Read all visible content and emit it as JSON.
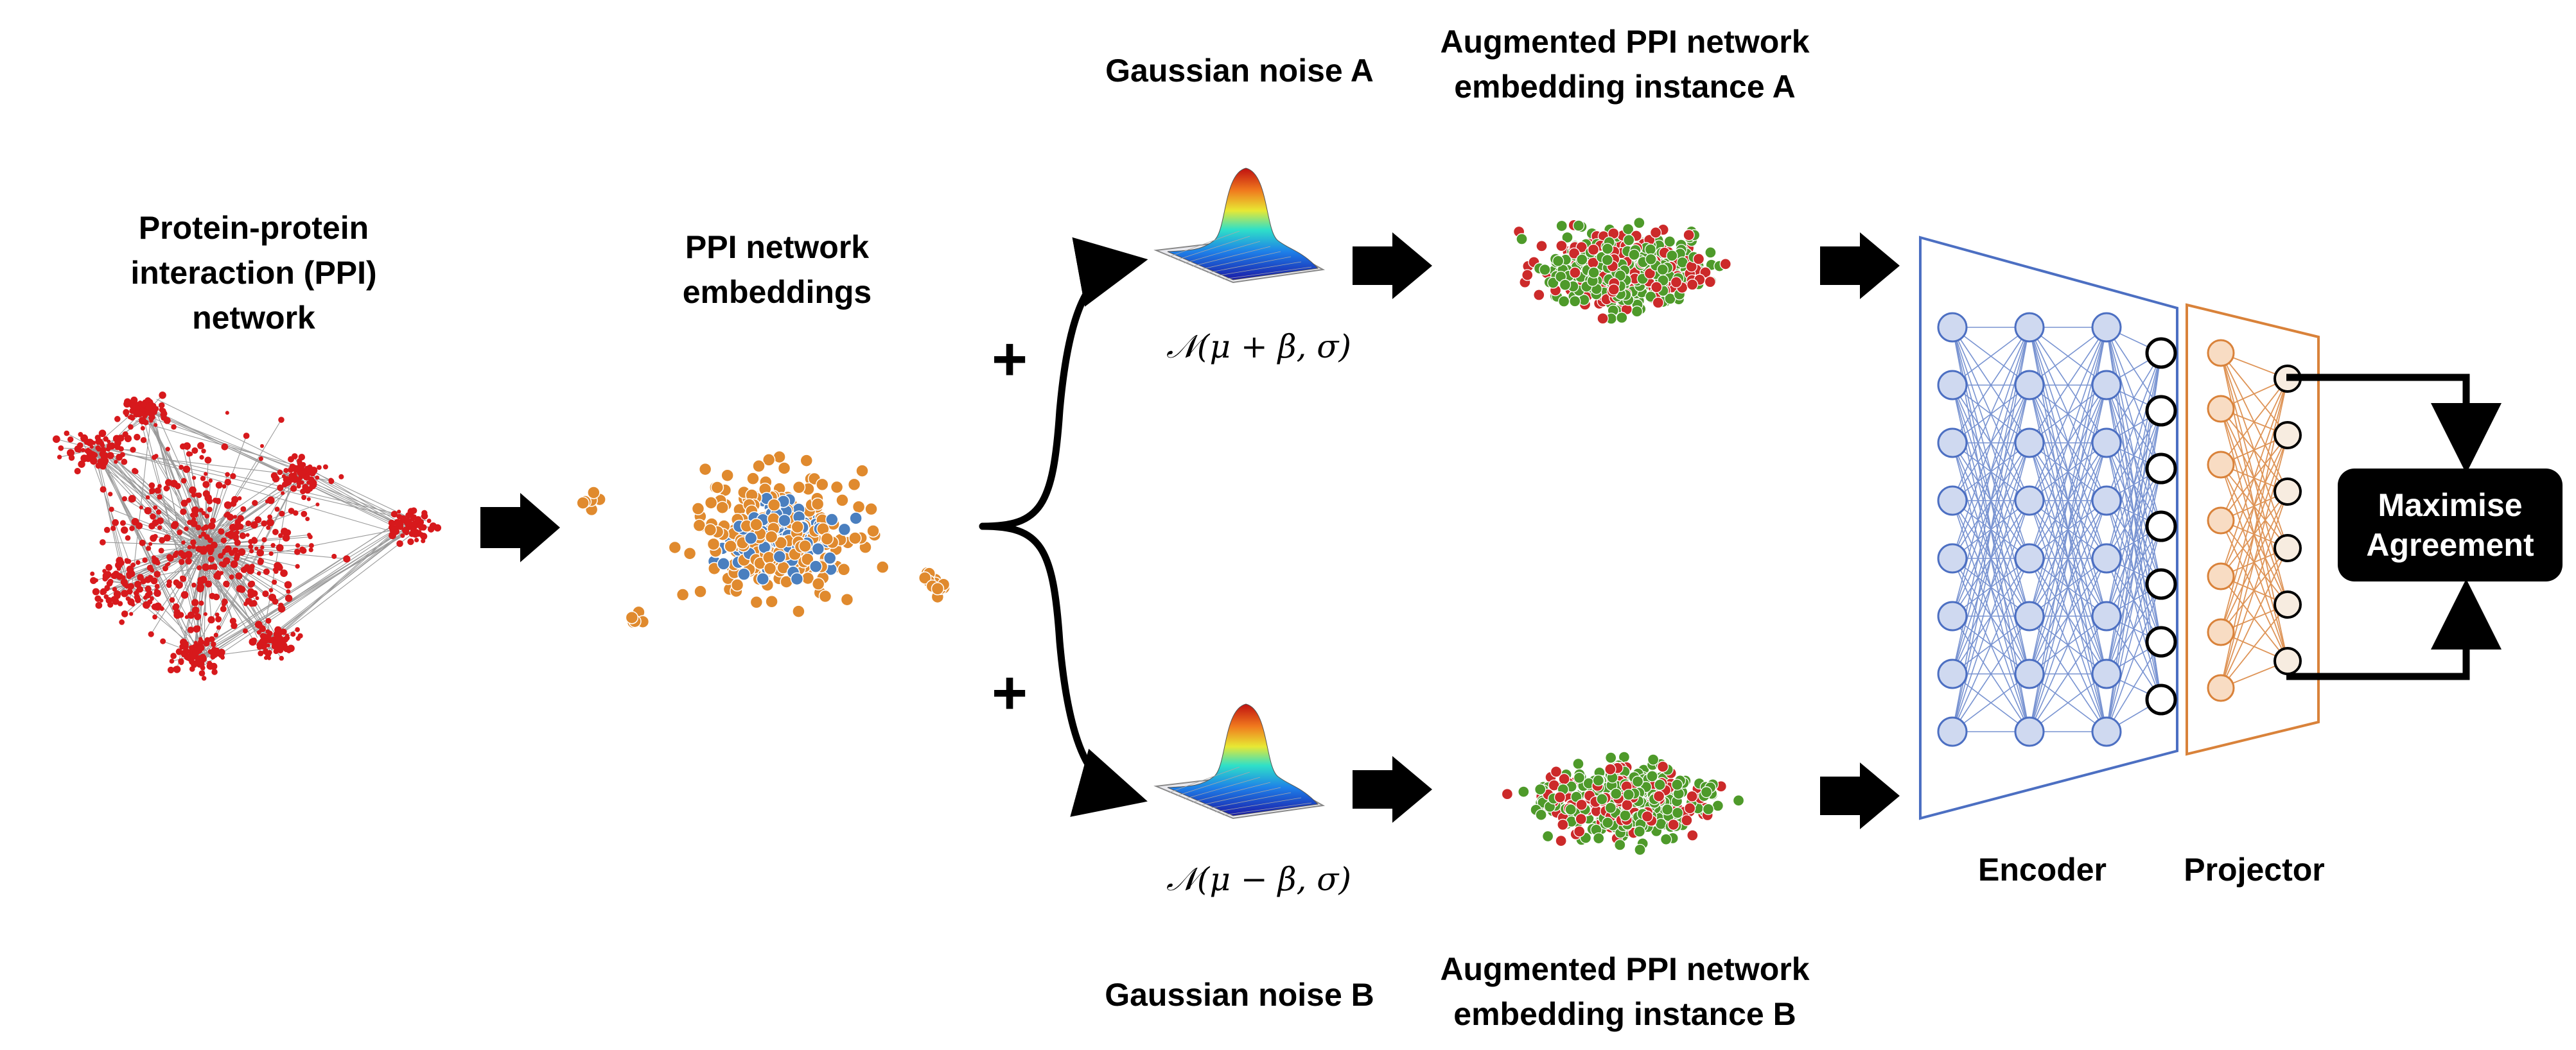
{
  "labels": {
    "ppi_network": [
      "Protein-protein",
      "interaction (PPI)",
      "network"
    ],
    "ppi_embeddings": [
      "PPI network",
      "embeddings"
    ],
    "noise_a": "Gaussian noise A",
    "noise_b": "Gaussian noise B",
    "formula_a": "𝒩(μ + β, σ)",
    "formula_b": "𝒩(μ − β, σ)",
    "plus": "+",
    "augmented_a": [
      "Augmented PPI network",
      "embedding instance A"
    ],
    "augmented_b": [
      "Augmented PPI network",
      "embedding instance B"
    ],
    "encoder": "Encoder",
    "projector": "Projector",
    "maximise": [
      "Maximise",
      "Agreement"
    ]
  },
  "colors": {
    "network_red": "#d7191c",
    "embedding_orange": "#e08a2e",
    "embedding_blue": "#4a7fbf",
    "augmented_red": "#cc2a2a",
    "augmented_green": "#4e9a2a",
    "encoder_blue": "#4c6fc2",
    "encoder_node_fill": "#cfd9f0",
    "projector_orange": "#d9823a",
    "projector_node_fill": "#f8dcc3",
    "output_node_fill": "#f7ece0",
    "arrow_black": "#000000"
  },
  "icons": [
    "block-arrow-right-icon",
    "curved-arrow-icon",
    "gaussian-surface-icon"
  ]
}
